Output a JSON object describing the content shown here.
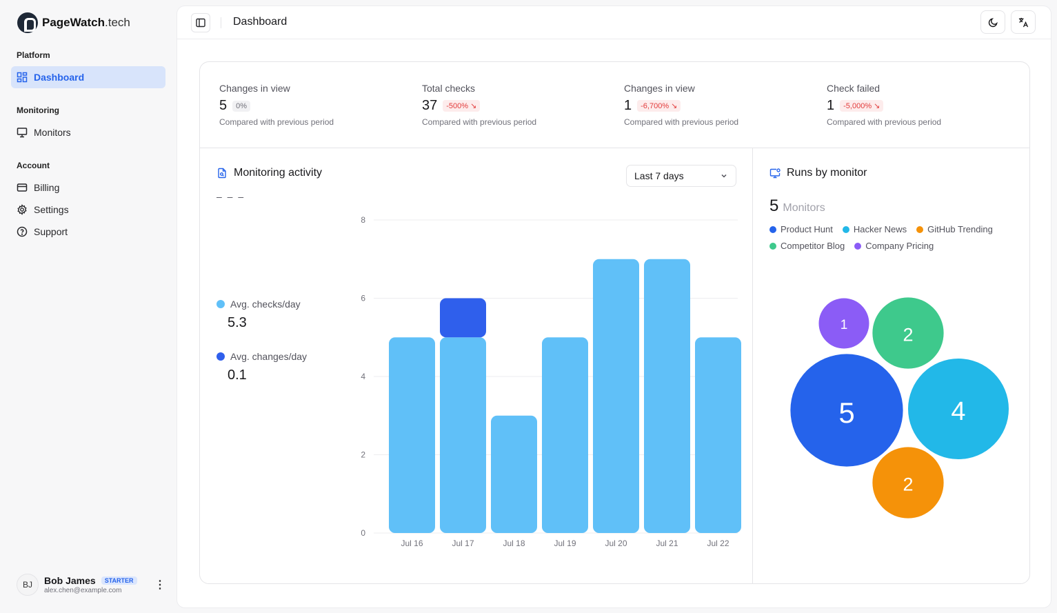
{
  "app": {
    "name": "PageWatch",
    "name_suffix": ".tech"
  },
  "sidebar": {
    "groups": [
      {
        "title": "Platform"
      },
      {
        "title": "Monitoring"
      },
      {
        "title": "Account"
      }
    ],
    "items": [
      {
        "label": "Dashboard",
        "icon": "dashboard-icon",
        "active": true
      },
      {
        "label": "Monitors",
        "icon": "monitor-icon"
      },
      {
        "label": "Billing",
        "icon": "credit-card-icon"
      },
      {
        "label": "Settings",
        "icon": "gear-icon"
      },
      {
        "label": "Support",
        "icon": "help-circle-icon"
      }
    ],
    "user": {
      "initials": "BJ",
      "name": "Bob James",
      "plan": "STARTER",
      "email": "alex.chen@example.com"
    }
  },
  "header": {
    "title": "Dashboard",
    "buttons": [
      "theme-toggle",
      "language"
    ]
  },
  "stats": [
    {
      "label": "Changes in view",
      "value": "5",
      "delta": "0%",
      "trend": "neutral",
      "note": "Compared with previous period"
    },
    {
      "label": "Total checks",
      "value": "37",
      "delta": "-500% ↘",
      "trend": "down",
      "note": "Compared with previous period"
    },
    {
      "label": "Changes in view",
      "value": "1",
      "delta": "-6,700% ↘",
      "trend": "down",
      "note": "Compared with previous period"
    },
    {
      "label": "Check failed",
      "value": "1",
      "delta": "-5,000% ↘",
      "trend": "down",
      "note": "Compared with previous period"
    }
  ],
  "activity": {
    "title": "Monitoring activity",
    "range_select": "Last 7 days",
    "dashes": "– – –",
    "avg_checks": {
      "label": "Avg. checks/day",
      "value": "5.3",
      "color": "#60c0f8"
    },
    "avg_changes": {
      "label": "Avg. changes/day",
      "value": "0.1",
      "color": "#2f5fec"
    }
  },
  "chart_data": {
    "type": "bar",
    "stacked": true,
    "categories": [
      "Jul 16",
      "Jul 17",
      "Jul 18",
      "Jul 19",
      "Jul 20",
      "Jul 21",
      "Jul 22"
    ],
    "series": [
      {
        "values": [
          5,
          5,
          3,
          5,
          7,
          7,
          5
        ],
        "color": "#60c0f8"
      },
      {
        "values": [
          0,
          1,
          0,
          0,
          0,
          0,
          0
        ],
        "color": "#2f5fec"
      }
    ],
    "yticks": [
      0,
      2,
      4,
      6,
      8
    ],
    "ylim": [
      0,
      8
    ],
    "grid": true,
    "title": "",
    "xlabel": "",
    "ylabel": ""
  },
  "runs": {
    "title": "Runs by monitor",
    "count": "5",
    "count_label": "Monitors",
    "monitors": [
      {
        "name": "Product Hunt",
        "color": "#2563eb",
        "runs": 5
      },
      {
        "name": "Hacker News",
        "color": "#22b8e8",
        "runs": 4
      },
      {
        "name": "GitHub Trending",
        "color": "#f59209",
        "runs": 2
      },
      {
        "name": "Competitor Blog",
        "color": "#3ec98c",
        "runs": 2
      },
      {
        "name": "Company Pricing",
        "color": "#8b5cf6",
        "runs": 1
      }
    ]
  }
}
